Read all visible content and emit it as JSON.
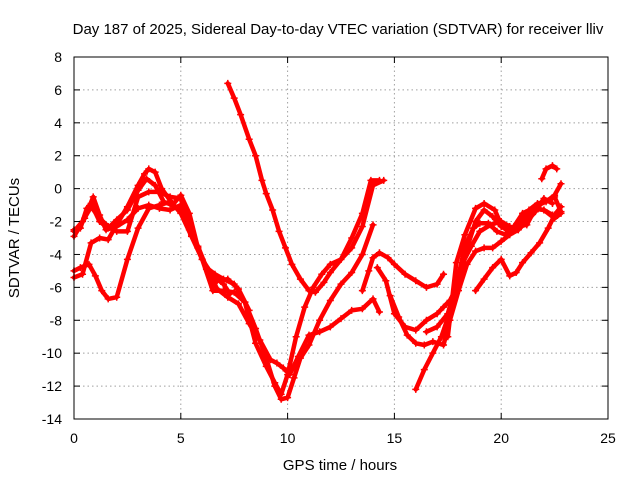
{
  "chart_data": {
    "type": "scatter",
    "title": "Day 187 of 2025, Sidereal Day-to-day VTEC variation (SDTVAR) for receiver lliv",
    "xlabel": "GPS time / hours",
    "ylabel": "SDTVAR / TECUs",
    "xlim": [
      0,
      25
    ],
    "ylim": [
      -14,
      8
    ],
    "xticks": [
      0,
      5,
      10,
      15,
      20,
      25
    ],
    "yticks": [
      -14,
      -12,
      -10,
      -8,
      -6,
      -4,
      -2,
      0,
      2,
      4,
      6,
      8
    ],
    "grid": true,
    "marker": "plus",
    "color": "#ff0000",
    "series": [
      {
        "points": [
          [
            0.0,
            -2.9
          ],
          [
            0.5,
            -1.8
          ],
          [
            0.9,
            -0.5
          ],
          [
            1.2,
            -1.6
          ],
          [
            1.5,
            -2.5
          ],
          [
            2.0,
            -2.3
          ],
          [
            2.5,
            -1.9
          ],
          [
            3.0,
            -1.2
          ],
          [
            3.5,
            -1.0
          ],
          [
            4.0,
            -1.2
          ],
          [
            4.5,
            -1.3
          ],
          [
            5.0,
            -1.0
          ],
          [
            5.3,
            -1.7
          ],
          [
            5.8,
            -3.6
          ],
          [
            6.2,
            -4.8
          ],
          [
            6.7,
            -6.1
          ],
          [
            7.2,
            -6.6
          ],
          [
            7.7,
            -7.0
          ],
          [
            8.2,
            -8.2
          ],
          [
            8.7,
            -9.2
          ],
          [
            9.2,
            -10.4
          ],
          [
            9.5,
            -10.6
          ],
          [
            9.8,
            -10.9
          ],
          [
            10.1,
            -11.3
          ],
          [
            10.5,
            -10.2
          ],
          [
            11.0,
            -8.9
          ],
          [
            11.5,
            -8.7
          ],
          [
            12.0,
            -8.4
          ],
          [
            12.5,
            -7.9
          ],
          [
            13.0,
            -7.4
          ],
          [
            13.5,
            -7.3
          ],
          [
            14.0,
            -6.7
          ],
          [
            14.3,
            -7.5
          ]
        ]
      },
      {
        "points": [
          [
            0.0,
            -2.5
          ],
          [
            0.3,
            -2.4
          ],
          [
            0.6,
            -1.2
          ],
          [
            0.8,
            -0.9
          ],
          [
            1.2,
            -2.0
          ],
          [
            1.6,
            -2.4
          ],
          [
            2.0,
            -1.9
          ],
          [
            2.5,
            -1.3
          ],
          [
            3.0,
            -0.1
          ],
          [
            3.4,
            0.6
          ],
          [
            3.8,
            0.2
          ],
          [
            4.2,
            -0.8
          ],
          [
            4.6,
            -1.0
          ],
          [
            5.0,
            -0.4
          ],
          [
            5.4,
            -1.5
          ],
          [
            5.8,
            -3.6
          ],
          [
            6.2,
            -4.9
          ],
          [
            6.7,
            -5.6
          ],
          [
            7.2,
            -5.5
          ],
          [
            7.7,
            -6.1
          ],
          [
            8.2,
            -7.4
          ]
        ]
      },
      {
        "points": [
          [
            0.0,
            -2.6
          ],
          [
            0.4,
            -2.0
          ],
          [
            0.8,
            -1.1
          ],
          [
            1.2,
            -1.8
          ],
          [
            1.6,
            -2.3
          ],
          [
            2.0,
            -2.6
          ],
          [
            2.5,
            -2.6
          ],
          [
            3.0,
            -0.5
          ],
          [
            3.5,
            -0.2
          ],
          [
            4.0,
            -0.2
          ],
          [
            4.5,
            -0.5
          ],
          [
            5.0,
            -0.6
          ],
          [
            5.4,
            -2.5
          ],
          [
            5.8,
            -3.5
          ],
          [
            6.2,
            -4.8
          ],
          [
            6.6,
            -5.2
          ],
          [
            7.0,
            -5.5
          ],
          [
            7.5,
            -5.8
          ],
          [
            8.0,
            -6.9
          ],
          [
            8.5,
            -9.4
          ],
          [
            9.0,
            -10.8
          ],
          [
            9.4,
            -11.8
          ],
          [
            9.7,
            -12.5
          ],
          [
            10.0,
            -11.3
          ],
          [
            10.4,
            -9.0
          ],
          [
            10.8,
            -7.2
          ],
          [
            11.2,
            -6.0
          ],
          [
            11.6,
            -5.2
          ],
          [
            12.0,
            -4.6
          ],
          [
            12.5,
            -4.3
          ],
          [
            13.0,
            -3.6
          ],
          [
            13.5,
            -2.3
          ],
          [
            14.0,
            0.2
          ],
          [
            14.5,
            0.5
          ]
        ]
      },
      {
        "points": [
          [
            0.0,
            -5.0
          ],
          [
            0.3,
            -4.8
          ],
          [
            0.7,
            -4.6
          ],
          [
            1.0,
            -5.3
          ],
          [
            1.3,
            -6.2
          ],
          [
            1.6,
            -6.7
          ],
          [
            2.0,
            -6.6
          ],
          [
            2.5,
            -4.3
          ],
          [
            3.0,
            -2.4
          ],
          [
            3.5,
            -1.2
          ],
          [
            4.0,
            -1.0
          ],
          [
            4.5,
            -0.8
          ],
          [
            5.0,
            -1.4
          ],
          [
            5.5,
            -2.8
          ],
          [
            6.0,
            -4.3
          ],
          [
            6.5,
            -6.2
          ],
          [
            7.0,
            -6.2
          ],
          [
            7.5,
            -6.3
          ],
          [
            8.0,
            -6.9
          ],
          [
            8.5,
            -8.5
          ],
          [
            9.0,
            -10.3
          ],
          [
            9.4,
            -12.0
          ],
          [
            9.7,
            -12.8
          ],
          [
            10.0,
            -12.7
          ],
          [
            10.3,
            -11.5
          ],
          [
            10.6,
            -10.3
          ],
          [
            11.0,
            -9.5
          ],
          [
            11.5,
            -8.0
          ],
          [
            12.0,
            -6.8
          ],
          [
            12.5,
            -5.8
          ],
          [
            13.0,
            -5.1
          ],
          [
            13.5,
            -4.0
          ],
          [
            14.0,
            -2.2
          ]
        ]
      },
      {
        "points": [
          [
            0.0,
            -5.4
          ],
          [
            0.4,
            -5.2
          ],
          [
            0.8,
            -3.3
          ],
          [
            1.2,
            -3.0
          ],
          [
            1.6,
            -3.1
          ],
          [
            2.0,
            -2.2
          ],
          [
            2.5,
            -1.1
          ],
          [
            3.0,
            0.2
          ],
          [
            3.3,
            0.9
          ],
          [
            3.5,
            1.2
          ],
          [
            3.8,
            1.0
          ],
          [
            4.1,
            0.0
          ],
          [
            4.6,
            -0.9
          ],
          [
            5.0,
            -1.5
          ],
          [
            5.5,
            -2.9
          ],
          [
            6.0,
            -4.3
          ],
          [
            6.5,
            -5.3
          ],
          [
            7.0,
            -5.8
          ],
          [
            7.3,
            -6.4
          ]
        ]
      },
      {
        "points": [
          [
            7.2,
            6.4
          ],
          [
            7.5,
            5.5
          ],
          [
            7.8,
            4.5
          ],
          [
            8.2,
            3.0
          ],
          [
            8.5,
            2.0
          ],
          [
            8.8,
            0.5
          ],
          [
            9.0,
            -0.3
          ],
          [
            9.3,
            -1.3
          ],
          [
            9.6,
            -2.6
          ],
          [
            9.9,
            -3.6
          ],
          [
            10.2,
            -4.6
          ],
          [
            10.6,
            -5.5
          ],
          [
            11.0,
            -6.2
          ],
          [
            11.3,
            -6.3
          ],
          [
            11.7,
            -5.7
          ],
          [
            12.0,
            -5.1
          ],
          [
            12.5,
            -4.3
          ],
          [
            13.0,
            -3.0
          ],
          [
            13.5,
            -1.5
          ],
          [
            13.9,
            0.5
          ],
          [
            14.3,
            0.5
          ]
        ]
      },
      {
        "points": [
          [
            13.5,
            -6.2
          ],
          [
            13.8,
            -5.0
          ],
          [
            14.0,
            -4.2
          ],
          [
            14.3,
            -3.9
          ],
          [
            14.7,
            -4.2
          ],
          [
            15.0,
            -4.6
          ],
          [
            15.5,
            -5.2
          ],
          [
            16.0,
            -5.6
          ],
          [
            16.5,
            -6.0
          ],
          [
            17.0,
            -5.8
          ],
          [
            17.3,
            -5.2
          ]
        ]
      },
      {
        "points": [
          [
            14.2,
            -4.8
          ],
          [
            14.6,
            -5.6
          ],
          [
            15.0,
            -7.6
          ],
          [
            15.5,
            -8.4
          ],
          [
            16.0,
            -8.6
          ],
          [
            16.5,
            -8.0
          ],
          [
            17.0,
            -7.6
          ],
          [
            17.3,
            -7.2
          ],
          [
            17.6,
            -6.8
          ],
          [
            18.0,
            -5.8
          ],
          [
            18.4,
            -3.6
          ],
          [
            18.8,
            -2.0
          ],
          [
            19.2,
            -1.3
          ],
          [
            19.6,
            -1.7
          ],
          [
            20.0,
            -2.3
          ],
          [
            20.4,
            -2.6
          ],
          [
            20.8,
            -2.3
          ],
          [
            21.2,
            -2.2
          ],
          [
            21.6,
            -1.2
          ],
          [
            22.0,
            -1.3
          ],
          [
            22.4,
            -1.6
          ]
        ]
      },
      {
        "points": [
          [
            14.8,
            -6.5
          ],
          [
            15.2,
            -7.8
          ],
          [
            15.6,
            -8.9
          ],
          [
            16.0,
            -9.4
          ],
          [
            16.4,
            -9.5
          ],
          [
            16.8,
            -9.3
          ],
          [
            17.3,
            -9.5
          ],
          [
            17.6,
            -8.0
          ],
          [
            18.0,
            -6.2
          ],
          [
            18.4,
            -4.6
          ],
          [
            18.8,
            -3.8
          ],
          [
            19.2,
            -3.6
          ],
          [
            19.6,
            -3.6
          ],
          [
            20.0,
            -3.2
          ],
          [
            20.4,
            -2.8
          ],
          [
            20.8,
            -2.5
          ],
          [
            21.2,
            -1.8
          ],
          [
            21.6,
            -1.2
          ],
          [
            22.0,
            -0.8
          ],
          [
            22.5,
            -0.5
          ],
          [
            22.8,
            -1.4
          ]
        ]
      },
      {
        "points": [
          [
            16.0,
            -12.2
          ],
          [
            16.4,
            -11.0
          ],
          [
            16.8,
            -10.0
          ],
          [
            17.2,
            -9.0
          ],
          [
            17.6,
            -7.5
          ],
          [
            17.9,
            -6.0
          ],
          [
            18.2,
            -4.5
          ],
          [
            18.6,
            -3.5
          ],
          [
            19.0,
            -2.6
          ],
          [
            19.5,
            -2.2
          ],
          [
            20.0,
            -2.0
          ],
          [
            20.4,
            -2.3
          ],
          [
            20.8,
            -2.5
          ],
          [
            21.2,
            -2.0
          ],
          [
            21.6,
            -1.4
          ],
          [
            22.0,
            -0.6
          ],
          [
            22.4,
            -0.9
          ]
        ]
      },
      {
        "points": [
          [
            16.5,
            -8.7
          ],
          [
            17.0,
            -8.4
          ],
          [
            17.5,
            -7.6
          ],
          [
            18.0,
            -5.3
          ],
          [
            18.3,
            -3.5
          ],
          [
            18.7,
            -2.4
          ],
          [
            19.0,
            -2.1
          ],
          [
            19.4,
            -2.1
          ],
          [
            19.8,
            -2.6
          ],
          [
            20.2,
            -2.8
          ],
          [
            20.6,
            -2.3
          ],
          [
            21.0,
            -1.5
          ],
          [
            21.5,
            -1.2
          ],
          [
            22.0,
            -1.3
          ],
          [
            22.5,
            -1.8
          ],
          [
            22.8,
            -1.5
          ]
        ]
      },
      {
        "points": [
          [
            17.5,
            -9.0
          ],
          [
            17.9,
            -4.5
          ],
          [
            18.3,
            -2.8
          ],
          [
            18.8,
            -1.2
          ],
          [
            19.2,
            -0.9
          ],
          [
            19.7,
            -1.3
          ],
          [
            20.0,
            -2.2
          ],
          [
            20.4,
            -2.7
          ],
          [
            20.8,
            -2.4
          ],
          [
            21.3,
            -1.3
          ],
          [
            21.7,
            -0.9
          ],
          [
            22.1,
            -0.8
          ],
          [
            22.5,
            -0.4
          ],
          [
            22.8,
            0.3
          ]
        ]
      },
      {
        "points": [
          [
            18.8,
            -6.2
          ],
          [
            19.2,
            -5.5
          ],
          [
            19.6,
            -4.8
          ],
          [
            20.0,
            -4.3
          ],
          [
            20.4,
            -5.3
          ],
          [
            20.7,
            -5.1
          ],
          [
            21.0,
            -4.5
          ],
          [
            21.4,
            -3.9
          ],
          [
            21.8,
            -3.3
          ],
          [
            22.2,
            -2.4
          ],
          [
            22.5,
            -1.6
          ],
          [
            22.8,
            -1.1
          ]
        ]
      },
      {
        "points": [
          [
            21.9,
            0.6
          ],
          [
            22.1,
            1.2
          ],
          [
            22.4,
            1.4
          ],
          [
            22.6,
            1.2
          ]
        ]
      }
    ]
  }
}
